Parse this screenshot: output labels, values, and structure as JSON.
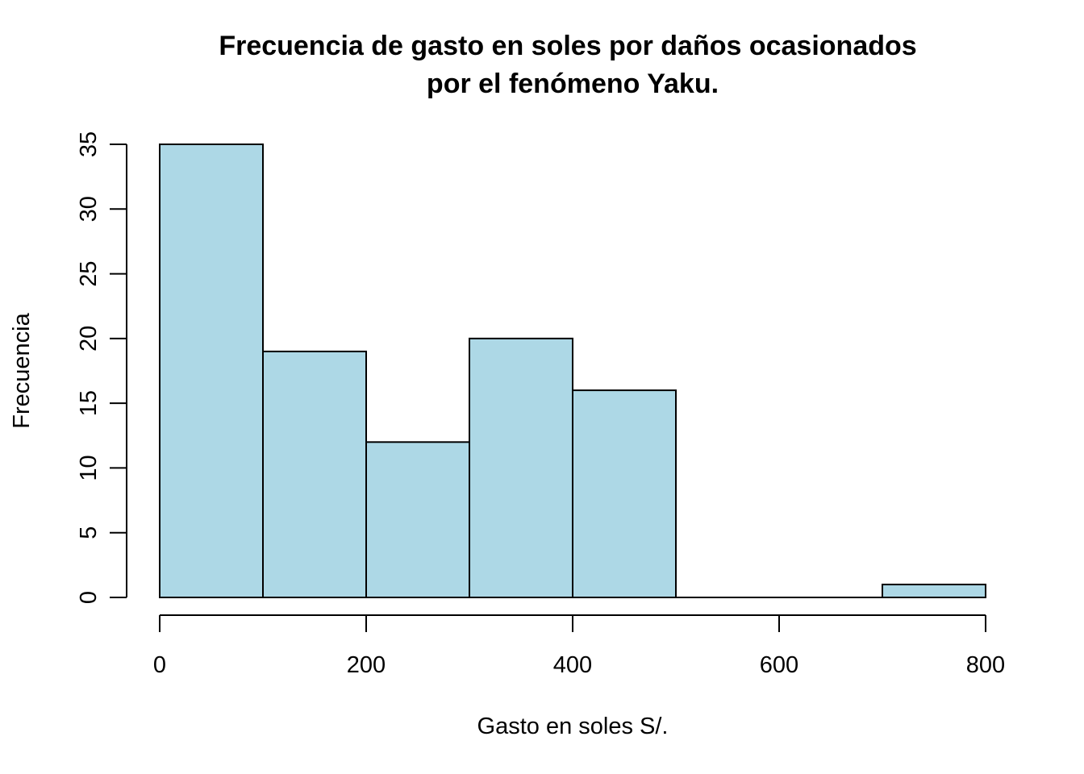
{
  "chart_data": {
    "type": "bar",
    "subtype": "histogram",
    "title_lines": [
      "Frecuencia de gasto en soles por daños ocasionados",
      "por el fenómeno Yaku."
    ],
    "xlabel": "Gasto en soles S/.",
    "ylabel": "Frecuencia",
    "bins": [
      {
        "x_start": 0,
        "x_end": 100,
        "value": 35
      },
      {
        "x_start": 100,
        "x_end": 200,
        "value": 19
      },
      {
        "x_start": 200,
        "x_end": 300,
        "value": 12
      },
      {
        "x_start": 300,
        "x_end": 400,
        "value": 20
      },
      {
        "x_start": 400,
        "x_end": 500,
        "value": 16
      },
      {
        "x_start": 500,
        "x_end": 600,
        "value": 0
      },
      {
        "x_start": 600,
        "x_end": 700,
        "value": 0
      },
      {
        "x_start": 700,
        "x_end": 800,
        "value": 1
      }
    ],
    "xlim": [
      0,
      800
    ],
    "ylim": [
      0,
      35
    ],
    "x_ticks": [
      "0",
      "200",
      "400",
      "600",
      "800"
    ],
    "y_ticks": [
      "0",
      "5",
      "10",
      "15",
      "20",
      "25",
      "30",
      "35"
    ],
    "bar_color": "#ADD8E6",
    "edge_color": "#000000",
    "grid": false,
    "legend": "none"
  }
}
